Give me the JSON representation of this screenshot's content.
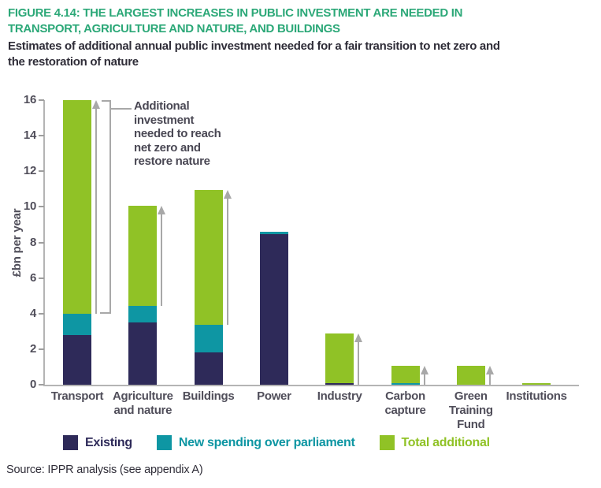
{
  "figure": {
    "title": "FIGURE 4.14: THE LARGEST INCREASES IN PUBLIC INVESTMENT ARE NEEDED IN\nTRANSPORT, AGRICULTURE AND NATURE, AND BUILDINGS",
    "subtitle": "Estimates of additional annual public investment needed for a fair transition to net zero and\nthe restoration of nature",
    "source": "Source: IPPR analysis (see appendix A)"
  },
  "colors": {
    "title_green": "#2ca878",
    "existing_navy": "#2e2a59",
    "new_teal": "#0e96a3",
    "additional_green": "#90c226",
    "text_dark": "#2f2d38",
    "axis_text": "#504e5a",
    "annotation_text": "#4a4854",
    "arrow_gray": "#a8a8a8",
    "axis_line_gray": "#b4b4b4",
    "tick_gray": "#9e9e9e"
  },
  "chart_data": {
    "type": "bar",
    "stacked": true,
    "ylabel": "£bn per year",
    "ylim": [
      0,
      16
    ],
    "ytick_step": 2,
    "grid": false,
    "legend_position": "bottom",
    "categories": [
      "Transport",
      "Agriculture\nand nature",
      "Buildings",
      "Power",
      "Industry",
      "Carbon\ncapture",
      "Green\nTraining\nFund",
      "Institutions"
    ],
    "series": [
      {
        "key": "existing",
        "name": "Existing",
        "color_key": "existing_navy",
        "values": [
          2.8,
          3.5,
          1.8,
          8.45,
          0.1,
          0,
          0,
          0
        ]
      },
      {
        "key": "new-spending",
        "name": "New spending over parliament",
        "color_key": "new_teal",
        "values": [
          1.2,
          0.95,
          1.55,
          0.15,
          0,
          0.1,
          0,
          0
        ]
      },
      {
        "key": "total-additional",
        "name": "Total additional",
        "color_key": "additional_green",
        "values": [
          12.0,
          5.6,
          7.6,
          0,
          2.8,
          0.95,
          1.05,
          0.1
        ]
      }
    ],
    "totals": [
      16.0,
      10.05,
      10.95,
      8.6,
      2.9,
      1.05,
      1.05,
      0.1
    ],
    "annotation": {
      "text": "Additional\ninvestment\nneeded to reach\nnet zero and\nrestore nature"
    },
    "arrows": [
      {
        "category_index": 0,
        "from": 4.0,
        "to": 16.0
      },
      {
        "category_index": 1,
        "from": 4.45,
        "to": 10.05
      },
      {
        "category_index": 2,
        "from": 3.35,
        "to": 10.95
      },
      {
        "category_index": 4,
        "from": 0,
        "to": 2.9
      },
      {
        "category_index": 5,
        "from": 0,
        "to": 1.05
      },
      {
        "category_index": 6,
        "from": 0,
        "to": 1.05
      }
    ]
  }
}
